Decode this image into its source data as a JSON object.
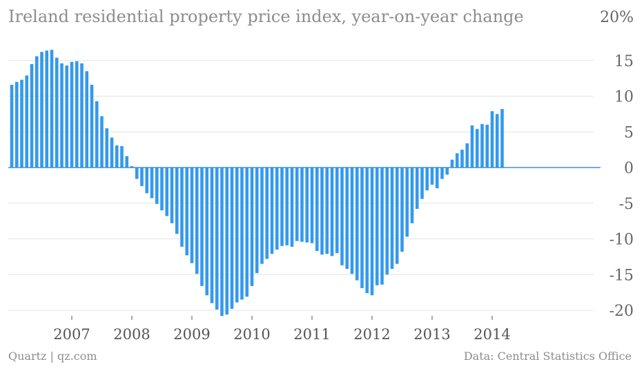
{
  "chart_data": {
    "type": "bar",
    "title": "Ireland residential property price index, year-on-year change",
    "unit": "%",
    "ylim": [
      -21,
      20
    ],
    "yticks": [
      20,
      15,
      10,
      5,
      0,
      -5,
      -10,
      -15,
      -20
    ],
    "ytick_labels": [
      "20%",
      "15",
      "10",
      "5",
      "0",
      "-5",
      "-10",
      "-15",
      "-20"
    ],
    "xticks": [
      "2007",
      "2008",
      "2009",
      "2010",
      "2011",
      "2012",
      "2013",
      "2014"
    ],
    "x_start": "2006-01",
    "grid": true,
    "values": [
      11.6,
      12.0,
      12.3,
      12.9,
      14.5,
      15.6,
      16.2,
      16.4,
      16.5,
      15.4,
      14.6,
      14.3,
      14.8,
      14.9,
      14.6,
      13.5,
      11.6,
      9.3,
      7.2,
      5.5,
      4.2,
      3.1,
      3.0,
      1.6,
      0.2,
      -1.6,
      -2.6,
      -3.6,
      -4.3,
      -5.1,
      -6.0,
      -6.8,
      -7.8,
      -9.3,
      -11.1,
      -12.3,
      -13.4,
      -14.9,
      -16.6,
      -17.9,
      -19.0,
      -19.9,
      -20.8,
      -20.6,
      -19.8,
      -18.9,
      -18.5,
      -18.1,
      -16.6,
      -14.8,
      -13.5,
      -12.8,
      -12.1,
      -11.5,
      -11.0,
      -10.9,
      -11.1,
      -10.3,
      -10.4,
      -10.5,
      -10.6,
      -11.7,
      -12.2,
      -12.1,
      -12.4,
      -12.0,
      -13.7,
      -14.2,
      -14.9,
      -15.8,
      -16.9,
      -17.6,
      -17.9,
      -16.5,
      -16.4,
      -15.0,
      -14.2,
      -13.5,
      -11.8,
      -9.7,
      -7.8,
      -5.8,
      -4.4,
      -3.2,
      -2.4,
      -2.9,
      -1.6,
      -1.0,
      1.1,
      2.0,
      2.5,
      3.4,
      5.9,
      5.4,
      6.1,
      6.0,
      7.9,
      7.5,
      8.2
    ]
  },
  "footer": {
    "source_left": "Quartz | qz.com",
    "source_right": "Data: Central Statistics Office"
  },
  "colors": {
    "bar": "#3399ee",
    "zero_line": "#3a8ee8",
    "grid": "#e3e3e3",
    "title": "#8c8c8c"
  }
}
